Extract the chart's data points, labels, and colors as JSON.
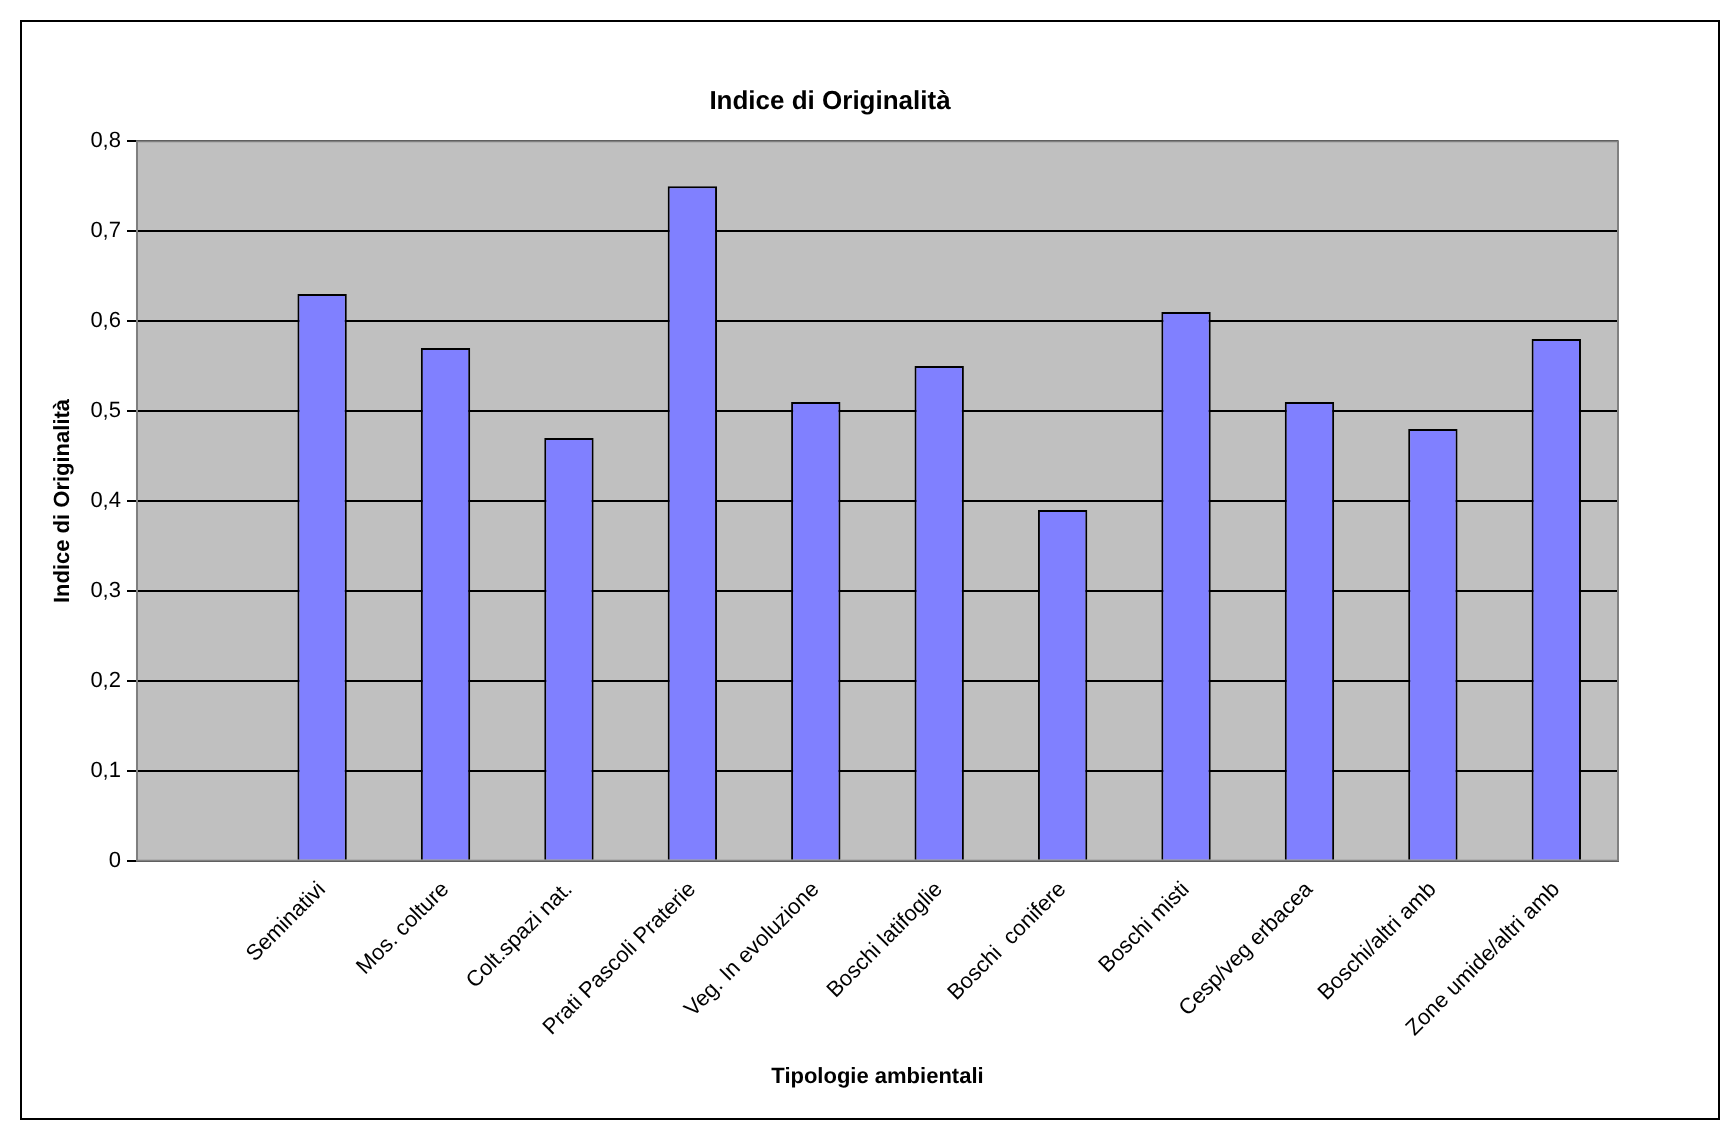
{
  "chart_data": {
    "type": "bar",
    "title": "Indice di Originalità",
    "xlabel": "Tipologie ambientali",
    "ylabel": "Indice di Originalità",
    "categories": [
      null,
      "Seminativi",
      "Mos. colture",
      "Colt.spazi nat.",
      "Prati Pascoli Praterie",
      "Veg. In evoluzione",
      "Boschi latifoglie",
      "Boschi  conifere",
      "Boschi misti",
      "Cesp/veg erbacea",
      "Boschi/altri amb",
      "Zone umide/altri amb"
    ],
    "values": [
      null,
      0.63,
      0.57,
      0.47,
      0.75,
      0.51,
      0.55,
      0.39,
      0.61,
      0.51,
      0.48,
      0.58
    ],
    "color": "#8080ff",
    "ylim": [
      0,
      0.8
    ],
    "yticks": [
      0,
      {
        "value": 0.1,
        "label": "0,1"
      },
      {
        "value": 0.2,
        "label": "0,2"
      },
      {
        "value": 0.3,
        "label": "0,3"
      },
      {
        "value": 0.4,
        "label": "0,4"
      },
      {
        "value": 0.5,
        "label": "0,5"
      },
      {
        "value": 0.6,
        "label": "0,6"
      },
      {
        "value": 0.7,
        "label": "0,7"
      },
      {
        "value": 0.8,
        "label": "0,8"
      }
    ],
    "grid": "y",
    "legend": false
  }
}
